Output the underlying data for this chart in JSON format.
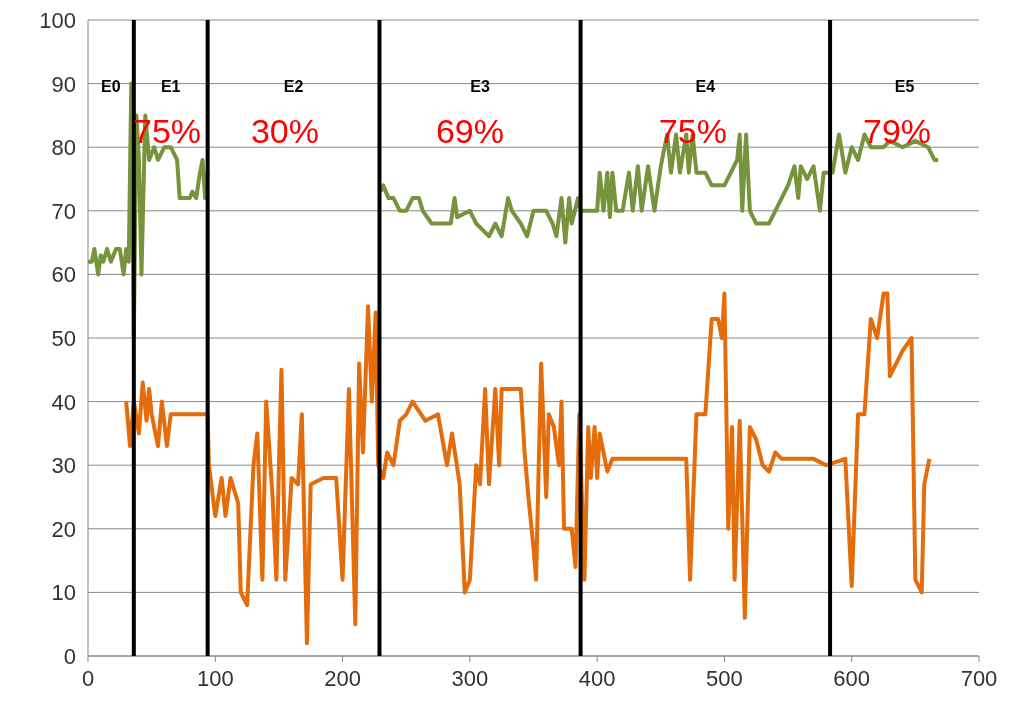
{
  "chart_data": {
    "type": "line",
    "xlim": [
      0,
      700
    ],
    "xticks": [
      0,
      100,
      200,
      300,
      400,
      500,
      600,
      700
    ],
    "ylim": [
      0,
      100
    ],
    "yticks": [
      0,
      10,
      20,
      30,
      40,
      50,
      60,
      70,
      80,
      90,
      100
    ],
    "grid": "y",
    "marker": "none",
    "line_style": "solid",
    "series": [
      {
        "color": "#77933c",
        "x": [
          0,
          3,
          5,
          8,
          10,
          12,
          15,
          18,
          20,
          22,
          25,
          28,
          30,
          32,
          34,
          36,
          38,
          40,
          42,
          45,
          48,
          52,
          55,
          60,
          65,
          70,
          72,
          80,
          82,
          85,
          88,
          90,
          92,
          94
        ],
        "values": [
          62,
          62,
          64,
          60,
          63,
          62,
          64,
          62,
          63,
          64,
          64,
          60,
          64,
          62,
          90,
          50,
          85,
          78,
          60,
          85,
          78,
          80,
          78,
          80,
          80,
          78,
          72,
          72,
          73,
          72,
          76,
          78,
          72,
          76
        ]
      },
      {
        "color": "#77933c",
        "x": [
          230,
          232,
          236,
          240,
          245,
          250,
          255,
          260,
          263,
          270,
          285,
          288,
          290,
          300,
          305,
          310,
          315,
          320,
          325,
          330,
          333,
          340,
          345,
          350,
          360,
          365,
          368,
          372,
          375,
          378,
          380,
          385,
          387,
          395,
          400,
          402,
          405,
          408,
          410,
          412,
          415,
          420,
          425,
          428,
          432,
          435,
          440,
          445,
          450,
          455,
          458,
          462,
          465,
          470,
          472,
          475,
          478,
          485,
          490,
          500,
          505,
          510,
          512,
          514,
          517,
          520,
          525,
          535,
          540,
          545,
          550,
          555,
          558,
          560,
          565,
          570,
          575,
          578,
          585,
          590,
          595,
          600,
          605,
          610,
          615,
          625,
          630,
          640,
          650,
          660,
          665,
          668
        ],
        "values": [
          73,
          74,
          72,
          72,
          70,
          70,
          72,
          72,
          70,
          68,
          68,
          72,
          69,
          70,
          68,
          67,
          66,
          68,
          66,
          72,
          70,
          68,
          66,
          70,
          70,
          68,
          66,
          72,
          65,
          72,
          68,
          72,
          70,
          70,
          70,
          76,
          70,
          76,
          69,
          76,
          70,
          70,
          76,
          70,
          77,
          70,
          77,
          70,
          77,
          82,
          76,
          82,
          76,
          82,
          76,
          82,
          76,
          76,
          74,
          74,
          76,
          78,
          82,
          70,
          82,
          70,
          68,
          68,
          70,
          72,
          74,
          77,
          72,
          77,
          75,
          77,
          70,
          76,
          76,
          82,
          76,
          80,
          78,
          82,
          80,
          80,
          81,
          80,
          81,
          80,
          78,
          78
        ]
      },
      {
        "color": "#e46c0a",
        "x": [
          30,
          33,
          36,
          40,
          43,
          46,
          48,
          50,
          55,
          58,
          62,
          65,
          70,
          80,
          90,
          94,
          95,
          100,
          105,
          108,
          112,
          118,
          120,
          125,
          130,
          133,
          137,
          140,
          145,
          148,
          150,
          152,
          155,
          160,
          165,
          168,
          172,
          175,
          185,
          195,
          200,
          205,
          210,
          213,
          216,
          220,
          223,
          226,
          228,
          232,
          235,
          240,
          245,
          250,
          255,
          265,
          275,
          282,
          286,
          292,
          296,
          300,
          305,
          308,
          312,
          315,
          320,
          323,
          325,
          340,
          343,
          346,
          350,
          352,
          356,
          360,
          362,
          366,
          370,
          372,
          374,
          380,
          383,
          386,
          390,
          393,
          395,
          398,
          400,
          402,
          408,
          410,
          412,
          420,
          470,
          473,
          478,
          485,
          490,
          495,
          498,
          500,
          503,
          506,
          508,
          512,
          516,
          520,
          525,
          530,
          535,
          540,
          545,
          570,
          580,
          595,
          600,
          605,
          610,
          615,
          620,
          625,
          628,
          630,
          640,
          647,
          650,
          655,
          657,
          661
        ],
        "values": [
          40,
          33,
          40,
          35,
          43,
          37,
          42,
          38,
          33,
          40,
          33,
          38,
          38,
          38,
          38,
          38,
          30,
          22,
          28,
          22,
          28,
          24,
          10,
          8,
          30,
          35,
          12,
          40,
          25,
          12,
          30,
          45,
          12,
          28,
          27,
          38,
          2,
          27,
          28,
          28,
          12,
          42,
          5,
          46,
          32,
          55,
          40,
          54,
          30,
          28,
          32,
          30,
          37,
          38,
          40,
          37,
          38,
          30,
          35,
          27,
          10,
          12,
          30,
          27,
          42,
          27,
          42,
          30,
          42,
          42,
          32,
          25,
          17,
          12,
          46,
          25,
          38,
          36,
          30,
          40,
          20,
          20,
          14,
          38,
          12,
          36,
          28,
          36,
          28,
          35,
          29,
          30,
          31,
          31,
          31,
          12,
          38,
          38,
          53,
          53,
          50,
          57,
          20,
          36,
          12,
          37,
          6,
          36,
          34,
          30,
          29,
          32,
          31,
          31,
          30,
          31,
          11,
          38,
          38,
          53,
          50,
          57,
          57,
          44,
          48,
          50,
          12,
          10,
          27,
          31
        ]
      }
    ],
    "ref_lines": [
      {
        "axis": "x",
        "value": 36,
        "color": "#000000"
      },
      {
        "axis": "x",
        "value": 94,
        "color": "#000000"
      },
      {
        "axis": "x",
        "value": 229,
        "color": "#000000"
      },
      {
        "axis": "x",
        "value": 387,
        "color": "#000000"
      },
      {
        "axis": "x",
        "value": 583,
        "color": "#000000"
      }
    ],
    "annotations": [
      "E0",
      "E1",
      "E2",
      "E3",
      "E4",
      "E5",
      "75%",
      "30%",
      "69%",
      "75%",
      "79%"
    ]
  }
}
